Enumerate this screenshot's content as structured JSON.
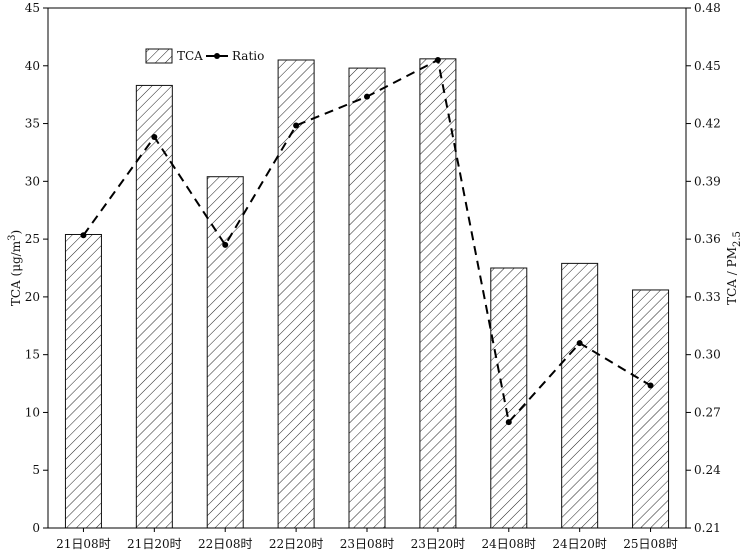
{
  "chart_data": {
    "type": "bar",
    "categories": [
      "21日08时",
      "21日20时",
      "22日08时",
      "22日20时",
      "23日08时",
      "23日20时",
      "24日08时",
      "24日20时",
      "25日08时"
    ],
    "series": [
      {
        "name": "TCA",
        "type": "bar",
        "axis": "left",
        "values": [
          25.4,
          38.3,
          30.4,
          40.5,
          39.8,
          40.6,
          22.5,
          22.9,
          20.6
        ]
      },
      {
        "name": "Ratio",
        "type": "line",
        "axis": "right",
        "values": [
          0.362,
          0.413,
          0.357,
          0.419,
          0.434,
          0.453,
          0.265,
          0.306,
          0.284
        ]
      }
    ],
    "ylabel_left": {
      "main": "TCA (μg/m",
      "sup": "3",
      "end": ")"
    },
    "ylabel_right": {
      "main": "TCA / PM",
      "sub": "2.5"
    },
    "ylim_left": [
      0,
      45
    ],
    "yticks_left": [
      "0",
      "5",
      "10",
      "15",
      "20",
      "25",
      "30",
      "35",
      "40",
      "45"
    ],
    "ylim_right": [
      0.21,
      0.48
    ],
    "yticks_right": [
      "0.21",
      "0.24",
      "0.27",
      "0.30",
      "0.33",
      "0.36",
      "0.39",
      "0.42",
      "0.45",
      "0.48"
    ],
    "legend": {
      "position": "top-left",
      "labels": [
        "TCA",
        "Ratio"
      ]
    },
    "grid": false,
    "colors": {
      "bar_fill": "#ffffff",
      "hatch": "#222222",
      "line": "#000000"
    }
  }
}
